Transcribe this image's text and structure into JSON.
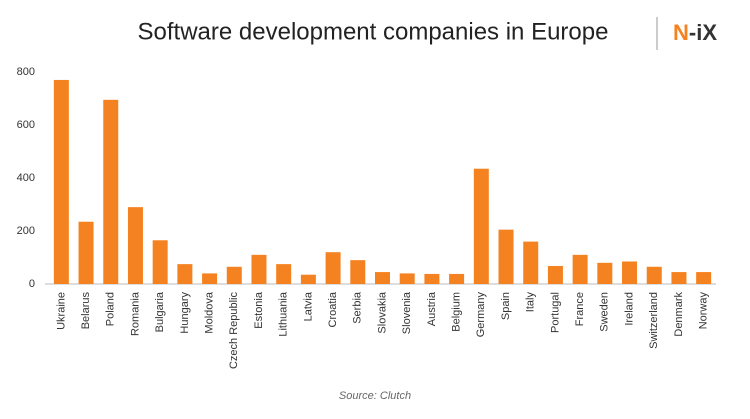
{
  "chart_data": {
    "type": "bar",
    "title": "Software development companies in Europe",
    "logo": [
      "N",
      "-i",
      "X"
    ],
    "source": "Source: Clutch",
    "categories": [
      "Ukraine",
      "Belarus",
      "Poland",
      "Romania",
      "Bulgaria",
      "Hungary",
      "Moldova",
      "Czech Republic",
      "Estonia",
      "Lithuania",
      "Latvia",
      "Croatia",
      "Serbia",
      "Slovakia",
      "Slovenia",
      "Austria",
      "Belgium",
      "Germany",
      "Spain",
      "Italy",
      "Portugal",
      "France",
      "Sweden",
      "Ireland",
      "Switzerland",
      "Denmark",
      "Norway"
    ],
    "values": [
      770,
      235,
      695,
      290,
      165,
      75,
      40,
      65,
      110,
      75,
      35,
      120,
      90,
      45,
      40,
      38,
      38,
      435,
      205,
      160,
      68,
      110,
      80,
      85,
      65,
      45,
      45
    ],
    "color": "#f58220",
    "ylim": [
      0,
      800
    ],
    "yticks": [
      0,
      200,
      400,
      600,
      800
    ],
    "grid": false
  }
}
